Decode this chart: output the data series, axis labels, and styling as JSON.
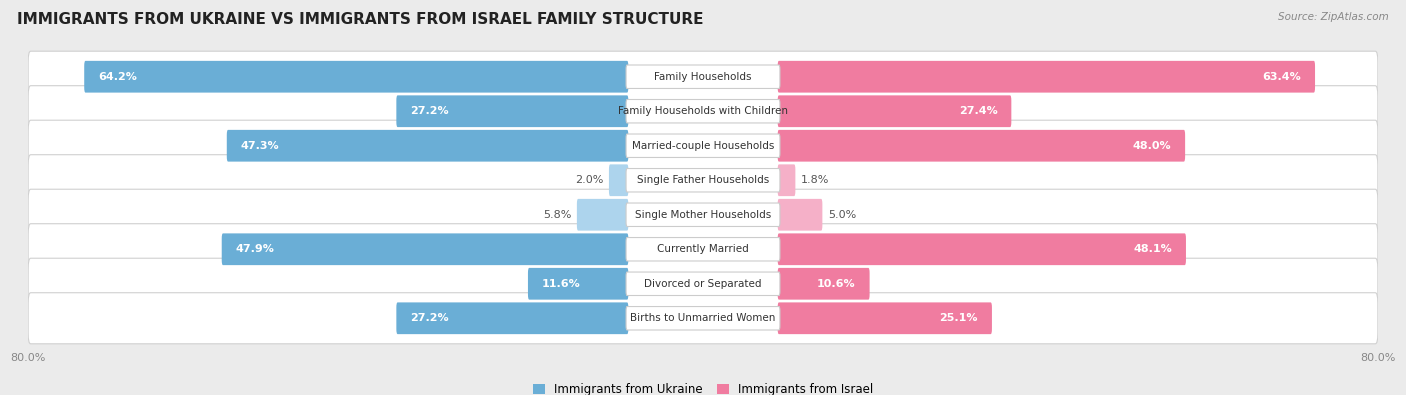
{
  "title": "IMMIGRANTS FROM UKRAINE VS IMMIGRANTS FROM ISRAEL FAMILY STRUCTURE",
  "source": "Source: ZipAtlas.com",
  "categories": [
    "Family Households",
    "Family Households with Children",
    "Married-couple Households",
    "Single Father Households",
    "Single Mother Households",
    "Currently Married",
    "Divorced or Separated",
    "Births to Unmarried Women"
  ],
  "ukraine_values": [
    64.2,
    27.2,
    47.3,
    2.0,
    5.8,
    47.9,
    11.6,
    27.2
  ],
  "israel_values": [
    63.4,
    27.4,
    48.0,
    1.8,
    5.0,
    48.1,
    10.6,
    25.1
  ],
  "ukraine_color": "#6aaed6",
  "ukraine_color_light": "#add4ed",
  "israel_color": "#f07ca0",
  "israel_color_light": "#f5b0c8",
  "ukraine_label": "Immigrants from Ukraine",
  "israel_label": "Immigrants from Israel",
  "axis_max": 80.0,
  "bg_color": "#ebebeb",
  "row_bg_color": "#ffffff",
  "title_fontsize": 11,
  "bar_label_fontsize": 8,
  "category_fontsize": 7.5,
  "legend_fontsize": 8.5,
  "axis_label_fontsize": 8
}
